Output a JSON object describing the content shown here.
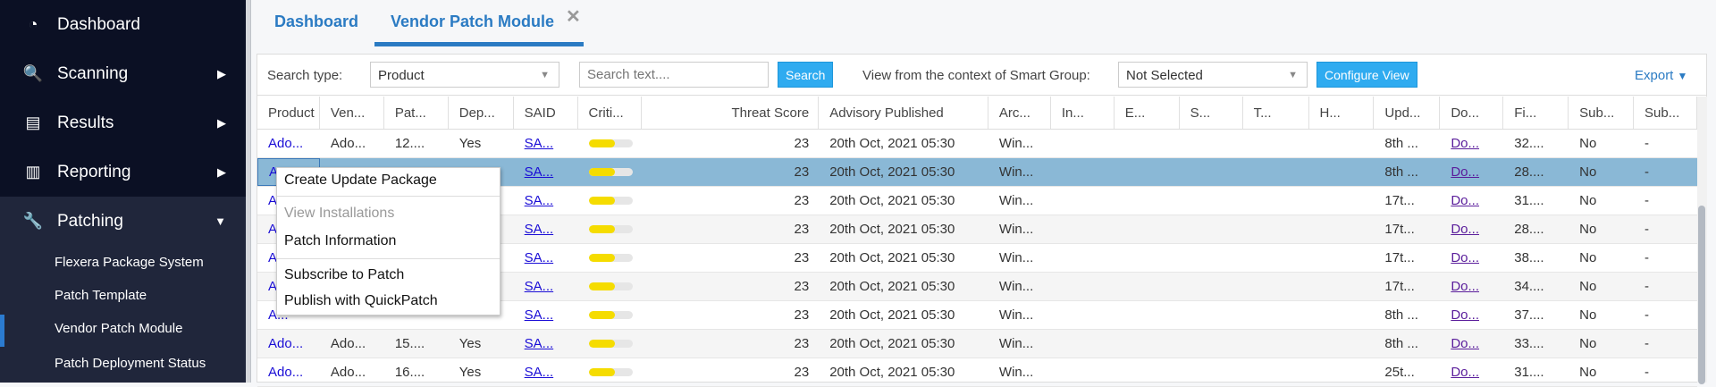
{
  "sidebar": {
    "items": [
      {
        "label": "Dashboard",
        "icon": "gauge-icon"
      },
      {
        "label": "Scanning",
        "icon": "search-icon"
      },
      {
        "label": "Results",
        "icon": "clipboard-icon"
      },
      {
        "label": "Reporting",
        "icon": "bar-chart-icon"
      },
      {
        "label": "Patching",
        "icon": "wrench-icon"
      }
    ],
    "sub_items": [
      "Flexera Package System",
      "Patch Template",
      "Vendor Patch Module",
      "Patch Deployment Status"
    ],
    "active_sub": "Vendor Patch Module"
  },
  "tabs": [
    {
      "label": "Dashboard"
    },
    {
      "label": "Vendor Patch Module",
      "active": true
    }
  ],
  "toolbar": {
    "search_type_label": "Search type:",
    "search_type_value": "Product",
    "search_placeholder": "Search text....",
    "search_button": "Search",
    "smart_group_label": "View from the context of Smart Group:",
    "smart_group_value": "Not Selected",
    "configure_button": "Configure View",
    "export_label": "Export"
  },
  "columns": [
    "Product",
    "Ven...",
    "Pat...",
    "Dep...",
    "SAID",
    "Criti...",
    "Threat Score",
    "Advisory Published",
    "Arc...",
    "In...",
    "E...",
    "S...",
    "T...",
    "H...",
    "Upd...",
    "Do...",
    "Fi...",
    "Sub...",
    "Sub..."
  ],
  "rows": [
    [
      "Ado...",
      "Ado...",
      "12....",
      "Yes",
      "SA...",
      0.6,
      "23",
      "20th Oct, 2021 05:30",
      "Win...",
      "",
      "",
      "",
      "",
      "",
      "8th ...",
      "Do...",
      "32....",
      "No",
      "-"
    ],
    [
      "A...",
      "",
      "",
      "",
      "SA...",
      0.6,
      "23",
      "20th Oct, 2021 05:30",
      "Win...",
      "",
      "",
      "",
      "",
      "",
      "8th ...",
      "Do...",
      "28....",
      "No",
      "-"
    ],
    [
      "A...",
      "",
      "",
      "",
      "SA...",
      0.6,
      "23",
      "20th Oct, 2021 05:30",
      "Win...",
      "",
      "",
      "",
      "",
      "",
      "17t...",
      "Do...",
      "31....",
      "No",
      "-"
    ],
    [
      "A...",
      "",
      "",
      "",
      "SA...",
      0.6,
      "23",
      "20th Oct, 2021 05:30",
      "Win...",
      "",
      "",
      "",
      "",
      "",
      "17t...",
      "Do...",
      "28....",
      "No",
      "-"
    ],
    [
      "A...",
      "",
      "",
      "",
      "SA...",
      0.6,
      "23",
      "20th Oct, 2021 05:30",
      "Win...",
      "",
      "",
      "",
      "",
      "",
      "17t...",
      "Do...",
      "38....",
      "No",
      "-"
    ],
    [
      "A...",
      "",
      "",
      "",
      "SA...",
      0.6,
      "23",
      "20th Oct, 2021 05:30",
      "Win...",
      "",
      "",
      "",
      "",
      "",
      "17t...",
      "Do...",
      "34....",
      "No",
      "-"
    ],
    [
      "A...",
      "",
      "",
      "",
      "SA...",
      0.6,
      "23",
      "20th Oct, 2021 05:30",
      "Win...",
      "",
      "",
      "",
      "",
      "",
      "8th ...",
      "Do...",
      "37....",
      "No",
      "-"
    ],
    [
      "Ado...",
      "Ado...",
      "15....",
      "Yes",
      "SA...",
      0.6,
      "23",
      "20th Oct, 2021 05:30",
      "Win...",
      "",
      "",
      "",
      "",
      "",
      "8th ...",
      "Do...",
      "33....",
      "No",
      "-"
    ],
    [
      "Ado...",
      "Ado...",
      "16....",
      "Yes",
      "SA...",
      0.6,
      "23",
      "20th Oct, 2021 05:30",
      "Win...",
      "",
      "",
      "",
      "",
      "",
      "25t...",
      "Do...",
      "31....",
      "No",
      "-"
    ]
  ],
  "selected_row": 1,
  "context_menu": [
    {
      "label": "Create Update Package",
      "enabled": true
    },
    {
      "label": "View Installations",
      "enabled": false
    },
    {
      "label": "Patch Information",
      "enabled": true
    },
    {
      "label": "Subscribe to Patch",
      "enabled": true
    },
    {
      "label": "Publish with QuickPatch",
      "enabled": true
    }
  ],
  "colors": {
    "sidebar": "#0b1024",
    "accent": "#2b7bc3",
    "button": "#2fabf0",
    "selected_row": "#8ab8d6",
    "criticality": "#f5dc00"
  }
}
